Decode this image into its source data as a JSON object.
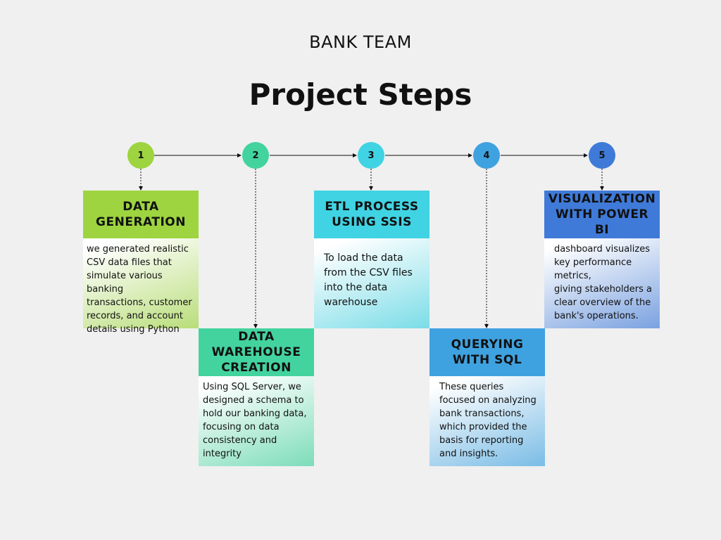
{
  "header": {
    "team": "BANK TEAM",
    "title": "Project Steps"
  },
  "colors": {
    "step1": "#9dd43f",
    "step2": "#43d39e",
    "step3": "#40d3e3",
    "step4": "#3fa2e0",
    "step5": "#3f7ad8"
  },
  "steps": [
    {
      "number": "1",
      "heading": "DATA GENERATION",
      "description": " we generated realistic\nCSV data files that\nsimulate various banking\ntransactions, customer\nrecords, and account\ndetails using Python"
    },
    {
      "number": "2",
      "heading": "DATA WAREHOUSE CREATION",
      "description": " Using SQL Server, we\ndesigned a schema to\nhold our banking data,\nfocusing on data\nconsistency and integrity"
    },
    {
      "number": "3",
      "heading": "ETL PROCESS USING SSIS",
      "description": "To load the data\nfrom the CSV files\ninto the data\nwarehouse"
    },
    {
      "number": "4",
      "heading": "QUERYING WITH SQL",
      "description": "These queries\nfocused on analyzing\nbank transactions,\nwhich provided the\nbasis for reporting\nand insights."
    },
    {
      "number": "5",
      "heading": "VISUALIZATION WITH POWER BI",
      "description": "dashboard visualizes\nkey performance\nmetrics,\ngiving stakeholders a\nclear overview of the\nbank's operations."
    }
  ]
}
